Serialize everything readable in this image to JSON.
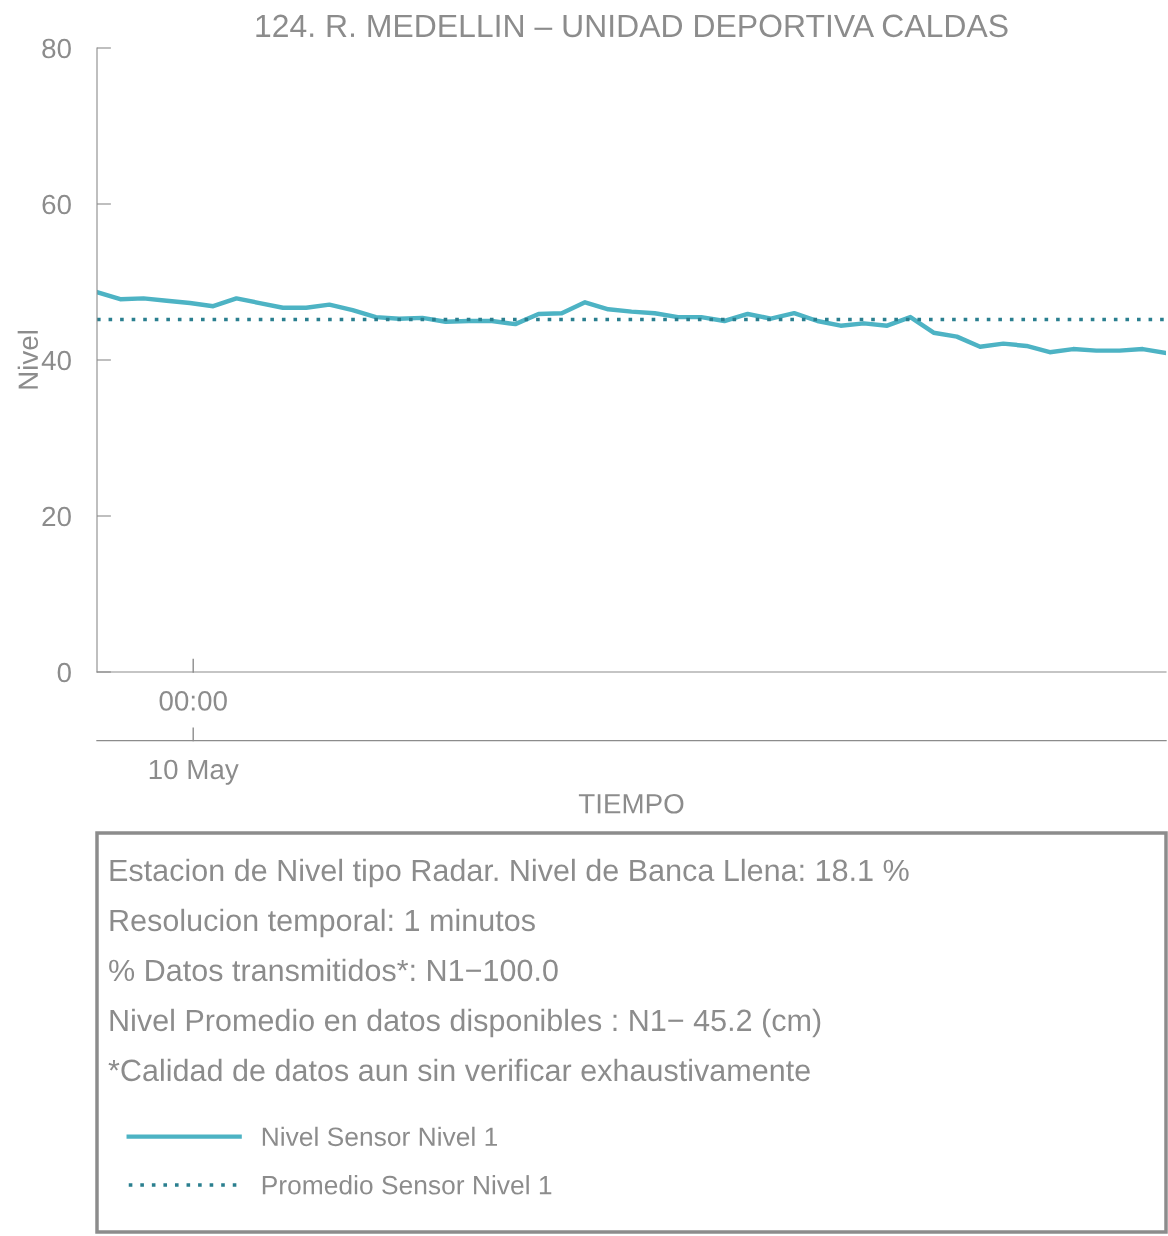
{
  "chart_data": {
    "type": "line",
    "title": "124. R. MEDELLIN – UNIDAD DEPORTIVA CALDAS",
    "xlabel": "TIEMPO",
    "ylabel": "Nivel",
    "categories": [
      null,
      null,
      null,
      null,
      null,
      null,
      null,
      null,
      null,
      null,
      null,
      null,
      null,
      null,
      null,
      null,
      null,
      null,
      null,
      null,
      null,
      null,
      null,
      null,
      null,
      null,
      null,
      null,
      null,
      null,
      null,
      null,
      null,
      null,
      null,
      null,
      null,
      null,
      null,
      null,
      null,
      null,
      null,
      null,
      null,
      null,
      null
    ],
    "series": [
      {
        "name": "Nivel Sensor Nivel 1",
        "color": "#4db3c4",
        "line_style": "solid",
        "values": [
          48.7,
          47.8,
          47.9,
          47.6,
          47.3,
          46.9,
          47.9,
          47.3,
          46.7,
          46.7,
          47.1,
          46.4,
          45.5,
          45.3,
          45.4,
          44.9,
          45.0,
          45.0,
          44.6,
          45.9,
          46.0,
          47.4,
          46.5,
          46.2,
          46.0,
          45.5,
          45.5,
          45.0,
          45.9,
          45.3,
          46.0,
          45.0,
          44.4,
          44.7,
          44.4,
          45.5,
          43.5,
          43.0,
          41.7,
          42.1,
          41.8,
          41.0,
          41.4,
          41.2,
          41.2,
          41.4,
          40.9
        ]
      },
      {
        "name": "Promedio Sensor Nivel 1",
        "color": "#2a7f8f",
        "line_style": "dotted",
        "values": [
          45.2,
          45.2,
          45.2,
          45.2,
          45.2,
          45.2,
          45.2,
          45.2,
          45.2,
          45.2,
          45.2,
          45.2,
          45.2,
          45.2,
          45.2,
          45.2,
          45.2,
          45.2,
          45.2,
          45.2,
          45.2,
          45.2,
          45.2,
          45.2,
          45.2,
          45.2,
          45.2,
          45.2,
          45.2,
          45.2,
          45.2,
          45.2,
          45.2,
          45.2,
          45.2,
          45.2,
          45.2,
          45.2,
          45.2,
          45.2,
          45.2,
          45.2,
          45.2,
          45.2,
          45.2,
          45.2,
          45.2
        ]
      }
    ],
    "ylim": [
      0,
      80
    ],
    "yticks": [
      0,
      20,
      40,
      60,
      80
    ],
    "grid": false,
    "legend": "bottom",
    "marker": "none",
    "annotations": [
      "00:00",
      "10 May",
      "Estacion de Nivel tipo Radar. Nivel de Banca Llena: 18.1 %",
      "Resolucion temporal: 1 minutos",
      "% Datos transmitidos*: N1−100.0",
      "Nivel Promedio en datos disponibles : N1− 45.2 (cm)",
      "*Calidad de datos aun sin verificar exhaustivamente"
    ]
  }
}
